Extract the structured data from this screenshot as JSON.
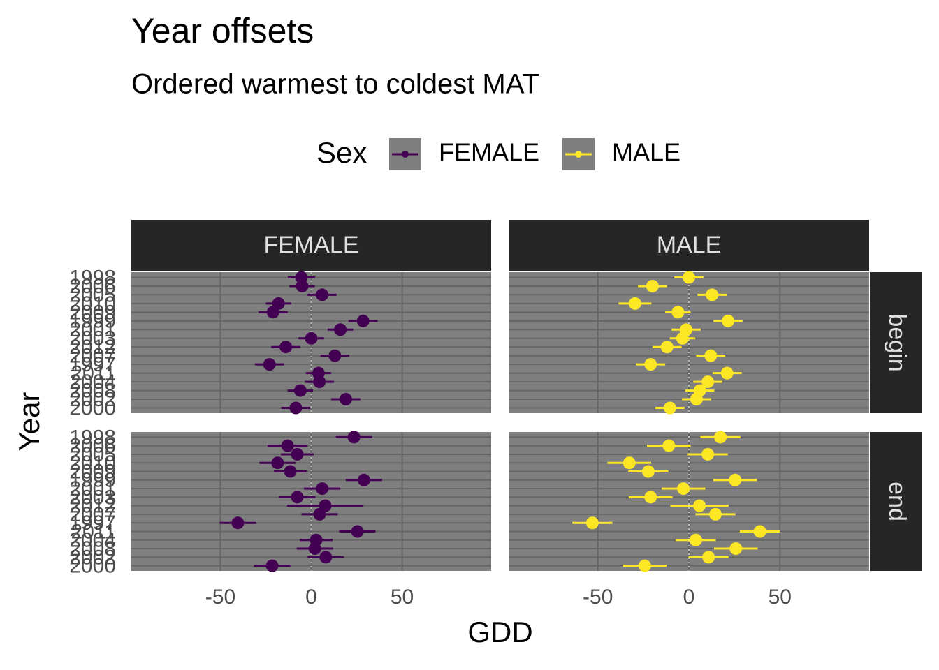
{
  "chart_data": {
    "type": "point-range",
    "title": "Year offsets",
    "subtitle": "Ordered warmest to coldest MAT",
    "xlabel": "GDD",
    "ylabel": "Year",
    "legend_title": "Sex",
    "categories": [
      "1998",
      "2006",
      "2005",
      "2010",
      "2009",
      "1999",
      "2001",
      "2003",
      "2012",
      "2007",
      "1997",
      "2011",
      "2004",
      "2008",
      "2002",
      "2000"
    ],
    "xlim": [
      -99,
      99
    ],
    "xticks": [
      -50,
      0,
      50
    ],
    "grid": true,
    "series": [
      {
        "name": "FEMALE",
        "facet_row": "begin",
        "color": "#440154",
        "values": [
          -5.4,
          -5,
          6,
          -18,
          -21,
          28.5,
          16,
          0,
          -14,
          13,
          -23,
          4,
          4.5,
          -6,
          19,
          -8.5
        ],
        "errors": [
          7.5,
          7,
          8,
          7,
          8,
          8,
          7,
          7,
          8,
          8,
          8,
          7,
          8,
          7,
          8,
          8
        ]
      },
      {
        "name": "MALE",
        "facet_row": "begin",
        "color": "#FDE725",
        "values": [
          0,
          -20,
          12.7,
          -29.6,
          -6,
          21.5,
          -1.5,
          -3.5,
          -12,
          12,
          -21,
          21,
          10.4,
          6,
          4.2,
          -10.4
        ],
        "errors": [
          8,
          8,
          8,
          9,
          7,
          8,
          8,
          7,
          8,
          8,
          8,
          8,
          8,
          8,
          8,
          8
        ]
      },
      {
        "name": "FEMALE",
        "facet_row": "end",
        "color": "#440154",
        "values": [
          23.5,
          -13,
          -7.7,
          -18.5,
          -11.5,
          29,
          6,
          -7.7,
          7.7,
          4.6,
          -40.4,
          25.4,
          2.7,
          2,
          8,
          -21.5
        ],
        "errors": [
          10,
          11,
          9,
          10,
          9,
          10,
          10,
          10,
          21,
          10,
          10,
          10,
          9,
          10,
          10,
          10
        ]
      },
      {
        "name": "MALE",
        "facet_row": "end",
        "color": "#FDE725",
        "values": [
          17.3,
          -11,
          10.4,
          -32.7,
          -22.3,
          25.4,
          -3,
          -21,
          5.8,
          14.6,
          -53,
          39,
          3.8,
          25.8,
          10.8,
          -24.2
        ],
        "errors": [
          11,
          12,
          11,
          12,
          11,
          12,
          12,
          12,
          16,
          11,
          11,
          11,
          11,
          12,
          11,
          12
        ]
      }
    ]
  }
}
